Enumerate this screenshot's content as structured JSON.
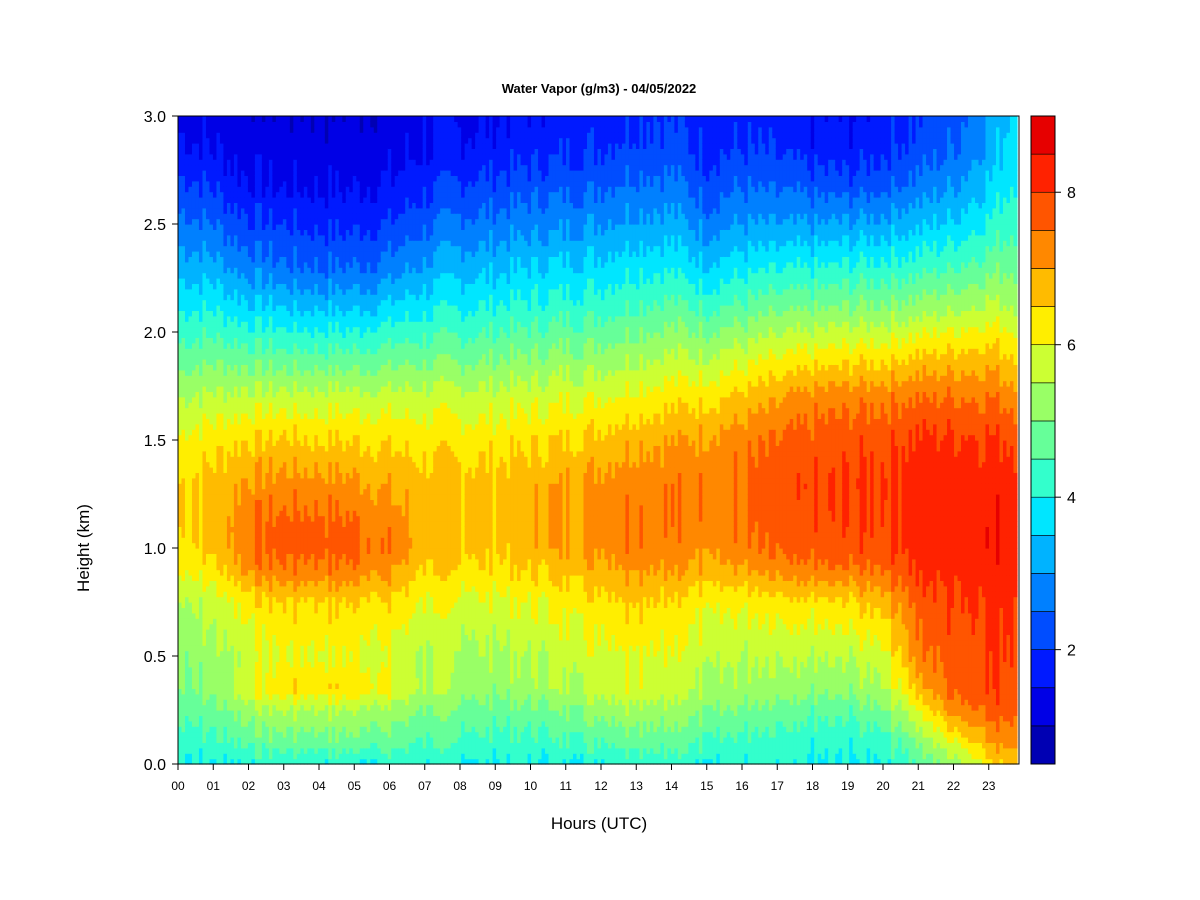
{
  "chart_data": {
    "type": "heatmap",
    "title": "Water Vapor (g/m3) - 04/05/2022",
    "xlabel": "Hours (UTC)",
    "ylabel": "Height (km)",
    "x_ticks": [
      "00",
      "01",
      "02",
      "03",
      "04",
      "05",
      "06",
      "07",
      "08",
      "09",
      "10",
      "11",
      "12",
      "13",
      "14",
      "15",
      "16",
      "17",
      "18",
      "19",
      "20",
      "21",
      "22",
      "23"
    ],
    "y_ticks": [
      "0.0",
      "0.5",
      "1.0",
      "1.5",
      "2.0",
      "2.5",
      "3.0"
    ],
    "xlim": [
      0,
      24
    ],
    "ylim": [
      0,
      3.0
    ],
    "colorbar": {
      "range": [
        0.5,
        9.0
      ],
      "levels": [
        0.5,
        1.0,
        1.5,
        2.0,
        2.5,
        3.0,
        3.5,
        4.0,
        4.5,
        5.0,
        5.5,
        6.0,
        6.5,
        7.0,
        7.5,
        8.0,
        8.5,
        9.0
      ],
      "ticks": [
        "2",
        "4",
        "6",
        "8"
      ],
      "colors": [
        "#00007f",
        "#0000b3",
        "#0000e6",
        "#001aff",
        "#004dff",
        "#0080ff",
        "#00b3ff",
        "#00e6ff",
        "#33ffcc",
        "#66ff99",
        "#99ff66",
        "#ccff33",
        "#ffee00",
        "#ffbb00",
        "#ff8800",
        "#ff5500",
        "#ff2200",
        "#e60000",
        "#aa0000",
        "#7f0000"
      ]
    },
    "x_hours": [
      0,
      1,
      2,
      3,
      4,
      5,
      6,
      7,
      8,
      9,
      10,
      11,
      12,
      13,
      14,
      15,
      16,
      17,
      18,
      19,
      20,
      21,
      22,
      23,
      23.8
    ],
    "heights_km": [
      0.0,
      0.1,
      0.25,
      0.35,
      0.5,
      0.75,
      0.9,
      1.0,
      1.1,
      1.3,
      1.5,
      1.7,
      1.9,
      2.1,
      2.3,
      2.5,
      2.7,
      2.85,
      3.0
    ],
    "values": [
      [
        3.5,
        3.5,
        3.6,
        3.6,
        3.6,
        3.5,
        3.6,
        3.6,
        3.5,
        3.5,
        3.5,
        3.5,
        3.6,
        3.8,
        3.7,
        3.6,
        3.5,
        3.5,
        3.4,
        3.4,
        3.6,
        4.0,
        4.8,
        5.8,
        6.3
      ],
      [
        3.8,
        3.8,
        4.2,
        4.3,
        4.3,
        4.3,
        4.2,
        4.0,
        3.9,
        3.8,
        3.8,
        3.9,
        4.1,
        4.3,
        4.2,
        4.0,
        3.8,
        3.7,
        3.6,
        3.6,
        3.8,
        4.5,
        5.5,
        6.5,
        6.8
      ],
      [
        4.2,
        4.3,
        4.8,
        5.0,
        5.0,
        5.0,
        4.8,
        4.5,
        4.4,
        4.3,
        4.3,
        4.5,
        4.8,
        5.0,
        4.8,
        4.6,
        4.4,
        4.2,
        4.1,
        4.1,
        4.5,
        5.5,
        6.8,
        7.2,
        7.3
      ],
      [
        4.5,
        4.6,
        5.5,
        5.9,
        5.9,
        5.9,
        5.6,
        5.0,
        4.8,
        4.7,
        4.8,
        5.0,
        5.3,
        5.5,
        5.2,
        5.0,
        4.8,
        4.7,
        4.6,
        4.6,
        5.0,
        6.2,
        7.2,
        7.5,
        7.5
      ],
      [
        4.6,
        4.8,
        5.2,
        5.5,
        5.5,
        5.5,
        5.3,
        5.0,
        4.9,
        4.9,
        5.0,
        5.2,
        5.4,
        5.6,
        5.4,
        5.2,
        5.0,
        5.0,
        5.0,
        5.0,
        5.4,
        6.8,
        7.3,
        7.5,
        7.6
      ],
      [
        5.0,
        5.2,
        5.8,
        6.0,
        6.0,
        6.0,
        5.9,
        5.5,
        5.4,
        5.4,
        5.5,
        5.7,
        5.9,
        6.2,
        5.9,
        5.7,
        5.6,
        5.7,
        5.8,
        5.9,
        6.3,
        7.2,
        7.5,
        7.7,
        7.7
      ],
      [
        5.6,
        5.8,
        6.7,
        6.9,
        6.9,
        6.9,
        6.6,
        6.0,
        5.9,
        5.9,
        6.0,
        6.2,
        6.4,
        6.7,
        6.5,
        6.4,
        6.4,
        6.6,
        6.8,
        6.9,
        7.1,
        7.6,
        7.7,
        7.8,
        7.8
      ],
      [
        5.9,
        6.1,
        7.0,
        7.2,
        7.2,
        7.2,
        6.9,
        6.3,
        6.2,
        6.1,
        6.3,
        6.5,
        6.7,
        7.0,
        6.8,
        6.7,
        6.8,
        7.0,
        7.2,
        7.3,
        7.4,
        7.8,
        7.8,
        7.9,
        7.9
      ],
      [
        6.0,
        6.2,
        7.0,
        7.2,
        7.2,
        7.1,
        6.8,
        6.3,
        6.2,
        6.2,
        6.3,
        6.5,
        6.7,
        7.0,
        6.9,
        6.8,
        6.9,
        7.1,
        7.3,
        7.4,
        7.5,
        7.8,
        7.8,
        7.9,
        7.8
      ],
      [
        6.0,
        6.2,
        6.6,
        6.7,
        6.7,
        6.6,
        6.4,
        6.2,
        6.2,
        6.2,
        6.3,
        6.5,
        6.7,
        6.9,
        6.9,
        6.9,
        7.0,
        7.2,
        7.4,
        7.5,
        7.6,
        7.8,
        7.8,
        7.8,
        7.8
      ],
      [
        5.6,
        5.8,
        6.0,
        6.1,
        6.0,
        6.0,
        5.9,
        5.8,
        5.8,
        5.8,
        5.9,
        6.0,
        6.2,
        6.4,
        6.5,
        6.6,
        6.8,
        7.0,
        7.2,
        7.3,
        7.4,
        7.6,
        7.6,
        7.6,
        7.5
      ],
      [
        5.0,
        5.1,
        5.2,
        5.2,
        5.2,
        5.2,
        5.2,
        5.2,
        5.2,
        5.2,
        5.3,
        5.4,
        5.5,
        5.7,
        5.8,
        5.9,
        6.1,
        6.4,
        6.7,
        6.8,
        6.9,
        7.0,
        7.0,
        7.0,
        6.8
      ],
      [
        4.2,
        4.3,
        4.2,
        4.1,
        4.1,
        4.1,
        4.2,
        4.3,
        4.3,
        4.4,
        4.5,
        4.6,
        4.7,
        4.9,
        5.0,
        5.0,
        5.2,
        5.4,
        5.6,
        5.7,
        5.8,
        6.0,
        6.1,
        6.2,
        6.0
      ],
      [
        3.5,
        3.5,
        3.2,
        3.1,
        3.0,
        3.0,
        3.2,
        3.4,
        3.5,
        3.6,
        3.7,
        3.8,
        3.9,
        4.1,
        4.2,
        4.0,
        4.2,
        4.4,
        4.5,
        4.6,
        4.7,
        4.8,
        5.0,
        5.2,
        5.1
      ],
      [
        2.8,
        2.7,
        2.3,
        2.1,
        2.0,
        2.0,
        2.2,
        2.6,
        2.8,
        2.9,
        3.0,
        3.1,
        3.2,
        3.4,
        3.4,
        3.1,
        3.3,
        3.4,
        3.5,
        3.6,
        3.7,
        3.8,
        4.0,
        4.3,
        4.5
      ],
      [
        2.2,
        2.0,
        1.6,
        1.5,
        1.4,
        1.4,
        1.5,
        1.9,
        2.1,
        2.2,
        2.3,
        2.4,
        2.5,
        2.7,
        2.7,
        2.3,
        2.5,
        2.5,
        2.5,
        2.6,
        2.7,
        2.9,
        3.1,
        3.6,
        4.0
      ],
      [
        1.6,
        1.4,
        1.0,
        0.9,
        0.9,
        0.9,
        1.0,
        1.3,
        1.5,
        1.6,
        1.7,
        1.8,
        1.9,
        2.1,
        2.1,
        1.7,
        1.9,
        1.8,
        1.7,
        1.6,
        1.8,
        2.1,
        2.4,
        3.0,
        3.6
      ],
      [
        1.1,
        1.0,
        0.8,
        0.7,
        0.7,
        0.7,
        0.8,
        1.0,
        1.1,
        1.2,
        1.3,
        1.4,
        1.5,
        1.7,
        1.7,
        1.4,
        1.5,
        1.4,
        1.2,
        1.2,
        1.4,
        1.7,
        2.0,
        2.7,
        3.4
      ],
      [
        0.9,
        0.8,
        0.7,
        0.6,
        0.6,
        0.6,
        0.7,
        0.9,
        0.9,
        1.0,
        1.1,
        1.2,
        1.3,
        1.5,
        1.5,
        1.2,
        1.3,
        1.2,
        1.0,
        1.0,
        1.2,
        1.5,
        1.8,
        2.5,
        3.3
      ]
    ]
  }
}
